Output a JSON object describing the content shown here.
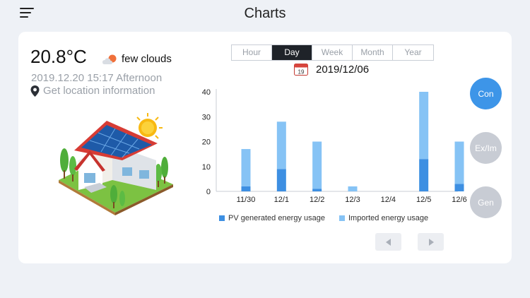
{
  "header": {
    "title": "Charts"
  },
  "weather": {
    "temperature": "20.8°C",
    "condition": "few clouds",
    "icon": "cloud-sun-icon"
  },
  "datetime": "2019.12.20 15:17 Afternoon",
  "location": {
    "label": "Get location information",
    "icon": "map-pin-icon"
  },
  "tabs": [
    {
      "label": "Hour",
      "active": false
    },
    {
      "label": "Day",
      "active": true
    },
    {
      "label": "Week",
      "active": false
    },
    {
      "label": "Month",
      "active": false
    },
    {
      "label": "Year",
      "active": false
    }
  ],
  "date": {
    "calendar_day": "19",
    "label": "2019/12/06"
  },
  "side_buttons": {
    "con": "Con",
    "exim": "Ex/Im",
    "gen": "Gen"
  },
  "colors": {
    "pv": "#3d8fe2",
    "imported": "#86c3f5",
    "accent": "#3d95e8",
    "inactive": "#c8ccd4"
  },
  "chart_data": {
    "type": "bar",
    "stacked": true,
    "categories": [
      "11/30",
      "12/1",
      "12/2",
      "12/3",
      "12/4",
      "12/5",
      "12/6"
    ],
    "series": [
      {
        "name": "PV generated energy usage",
        "values": [
          2,
          9,
          1,
          0,
          0,
          13,
          3
        ]
      },
      {
        "name": "Imported energy usage",
        "values": [
          15,
          19,
          19,
          2,
          0,
          27,
          17
        ]
      }
    ],
    "ylim": [
      0,
      40
    ],
    "yticks": [
      0,
      10,
      20,
      30,
      40
    ],
    "grid": false,
    "legend": "bottom"
  }
}
